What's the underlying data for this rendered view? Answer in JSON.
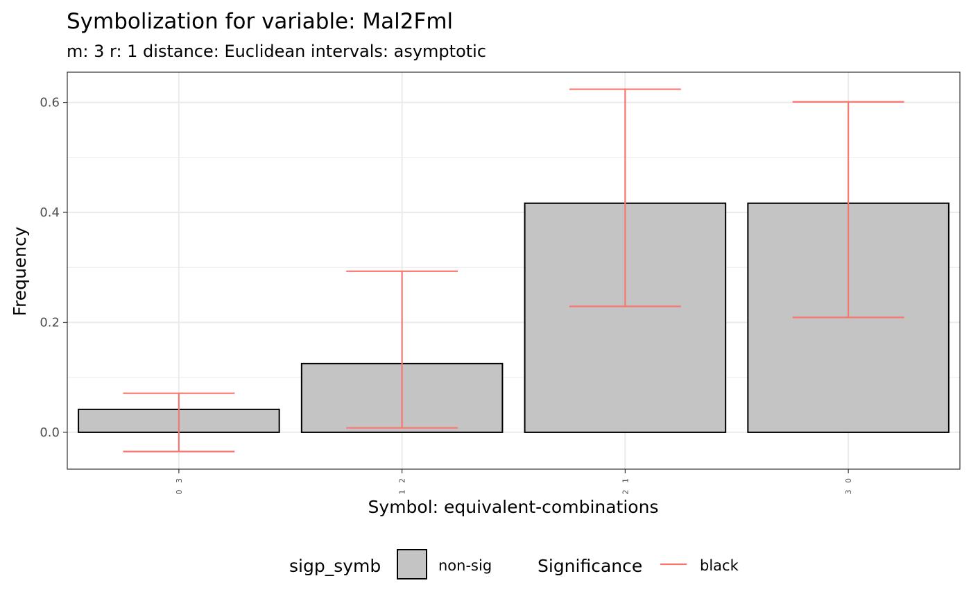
{
  "chart_data": {
    "type": "bar",
    "title": "Symbolization for variable: Mal2Fml",
    "subtitle": "m: 3  r:  1  distance:  Euclidean  intervals:  asymptotic",
    "xlabel": "Symbol: equivalent-combinations",
    "ylabel": "Frequency",
    "categories": [
      "0 3",
      "1 2",
      "2 1",
      "3 0"
    ],
    "values": [
      0.0417,
      0.125,
      0.4167,
      0.4167
    ],
    "error_low": [
      -0.035,
      0.008,
      0.229,
      0.209
    ],
    "error_high": [
      0.071,
      0.293,
      0.624,
      0.601
    ],
    "ylim": [
      -0.067,
      0.655
    ],
    "yticks": [
      0.0,
      0.2,
      0.4,
      0.6
    ],
    "ytick_labels": [
      "0.0",
      "0.2",
      "0.4",
      "0.6"
    ],
    "grid": true,
    "legend_position": "bottom",
    "colors": {
      "bar_fill": "#c4c4c4",
      "bar_stroke": "#000000",
      "errorbar": "#f8766d",
      "grid": "#ebebeb",
      "panel_border": "#333333"
    },
    "legend": {
      "fill": {
        "title": "sigp_symb",
        "entries": [
          "non-sig"
        ]
      },
      "color": {
        "title": "Significance",
        "entries": [
          "black"
        ]
      }
    }
  }
}
